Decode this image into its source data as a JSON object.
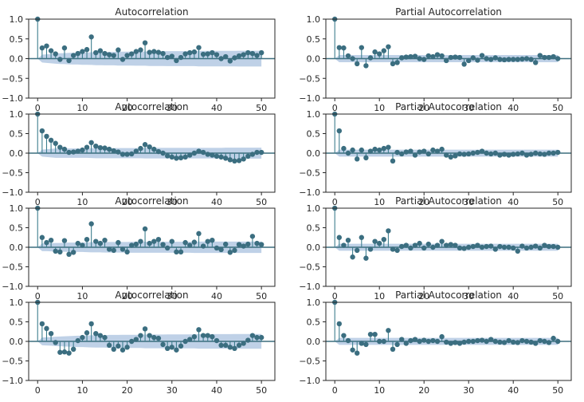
{
  "figure": {
    "rows": 4,
    "cols": 2
  },
  "colors": {
    "stem": "#3d7e8e",
    "marker": "#3b6e80",
    "band": "#b4c9e3",
    "zero_line": "#3d6f7f",
    "axes": "#262626"
  },
  "chart_data": [
    {
      "type": "stem",
      "row": 0,
      "col": 0,
      "title": "Autocorrelation",
      "xlim": [
        -2,
        53
      ],
      "ylim": [
        -1,
        1
      ],
      "xticks": [
        0,
        10,
        20,
        30,
        40,
        50
      ],
      "xtick_labels": [
        "0",
        "10",
        "20",
        "30",
        "40",
        "50"
      ],
      "yticks": [
        -1,
        -0.5,
        0,
        0.5,
        1
      ],
      "ytick_labels": [
        "−1.0",
        "−0.5",
        "0.0",
        "0.5",
        "1.0"
      ],
      "values": [
        1,
        0.27,
        0.32,
        0.2,
        0.12,
        -0.02,
        0.27,
        -0.05,
        0.08,
        0.13,
        0.18,
        0.23,
        0.55,
        0.15,
        0.2,
        0.13,
        0.1,
        0.08,
        0.22,
        -0.02,
        0.08,
        0.12,
        0.18,
        0.22,
        0.4,
        0.16,
        0.18,
        0.16,
        0.13,
        0.03,
        0.06,
        -0.05,
        0.03,
        0.12,
        0.15,
        0.17,
        0.28,
        0.11,
        0.12,
        0.15,
        0.1,
        0.0,
        0.05,
        -0.06,
        0.02,
        0.07,
        0.1,
        0.15,
        0.13,
        0.08,
        0.15
      ],
      "confint": [
        0.0,
        0.1,
        0.11,
        0.12,
        0.13,
        0.135,
        0.14,
        0.145,
        0.15,
        0.15,
        0.155,
        0.155,
        0.16,
        0.165,
        0.165,
        0.17,
        0.17,
        0.17,
        0.175,
        0.175,
        0.175,
        0.175,
        0.18,
        0.18,
        0.18,
        0.185,
        0.185,
        0.185,
        0.185,
        0.19,
        0.19,
        0.19,
        0.19,
        0.19,
        0.19,
        0.19,
        0.195,
        0.195,
        0.195,
        0.195,
        0.195,
        0.195,
        0.195,
        0.195,
        0.195,
        0.2,
        0.2,
        0.2,
        0.2,
        0.2,
        0.2
      ]
    },
    {
      "type": "stem",
      "row": 0,
      "col": 1,
      "title": "Partial Autocorrelation",
      "xlim": [
        -2,
        53
      ],
      "ylim": [
        -1,
        1
      ],
      "xticks": [
        0,
        10,
        20,
        30,
        40,
        50
      ],
      "xtick_labels": [
        "0",
        "10",
        "20",
        "30",
        "40",
        "50"
      ],
      "yticks": [
        -1,
        -0.5,
        0,
        0.5,
        1
      ],
      "ytick_labels": [
        "−1.0",
        "−0.5",
        "0.0",
        "0.5",
        "1.0"
      ],
      "values": [
        1,
        0.28,
        0.27,
        0.07,
        0.0,
        -0.13,
        0.28,
        -0.18,
        0.02,
        0.17,
        0.12,
        0.2,
        0.3,
        -0.13,
        -0.1,
        0.02,
        0.04,
        0.05,
        0.06,
        0.0,
        -0.02,
        0.07,
        0.05,
        0.1,
        0.07,
        -0.05,
        0.03,
        0.04,
        0.03,
        -0.14,
        -0.05,
        0.02,
        -0.04,
        0.08,
        0.0,
        -0.02,
        0.02,
        -0.02,
        -0.03,
        -0.02,
        -0.02,
        -0.02,
        -0.01,
        0.0,
        -0.02,
        -0.1,
        0.08,
        0.03,
        0.03,
        0.05,
        0.0
      ],
      "confint": [
        0.0,
        0.09,
        0.09,
        0.09,
        0.09,
        0.09,
        0.09,
        0.09,
        0.09,
        0.09,
        0.09,
        0.09,
        0.09,
        0.09,
        0.09,
        0.09,
        0.09,
        0.09,
        0.09,
        0.09,
        0.09,
        0.09,
        0.09,
        0.09,
        0.09,
        0.09,
        0.09,
        0.09,
        0.09,
        0.09,
        0.09,
        0.09,
        0.09,
        0.09,
        0.09,
        0.09,
        0.09,
        0.09,
        0.09,
        0.09,
        0.09,
        0.09,
        0.09,
        0.09,
        0.09,
        0.09,
        0.09,
        0.09,
        0.09,
        0.09,
        0.09
      ]
    },
    {
      "type": "stem",
      "row": 1,
      "col": 0,
      "title": "Autocorrelation",
      "xlim": [
        -2,
        53
      ],
      "ylim": [
        -1,
        1
      ],
      "xticks": [
        0,
        10,
        20,
        30,
        40,
        50
      ],
      "xtick_labels": [
        "0",
        "10",
        "20",
        "30",
        "40",
        "50"
      ],
      "yticks": [
        -1,
        -0.5,
        0,
        0.5,
        1
      ],
      "ytick_labels": [
        "−1.0",
        "−0.5",
        "0.0",
        "0.5",
        "1.0"
      ],
      "values": [
        1,
        0.57,
        0.43,
        0.33,
        0.25,
        0.15,
        0.1,
        0.02,
        0.03,
        0.05,
        0.08,
        0.15,
        0.27,
        0.18,
        0.14,
        0.13,
        0.1,
        0.06,
        0.03,
        -0.03,
        -0.03,
        -0.02,
        0.05,
        0.12,
        0.22,
        0.16,
        0.1,
        0.04,
        0.0,
        -0.07,
        -0.1,
        -0.13,
        -0.12,
        -0.1,
        -0.05,
        0.0,
        0.05,
        0.02,
        -0.03,
        -0.05,
        -0.08,
        -0.1,
        -0.13,
        -0.17,
        -0.2,
        -0.19,
        -0.15,
        -0.08,
        -0.03,
        0.02,
        0.02
      ],
      "confint": [
        0.0,
        0.09,
        0.1,
        0.11,
        0.12,
        0.12,
        0.12,
        0.12,
        0.12,
        0.12,
        0.12,
        0.12,
        0.125,
        0.13,
        0.13,
        0.13,
        0.13,
        0.13,
        0.13,
        0.13,
        0.13,
        0.13,
        0.13,
        0.13,
        0.135,
        0.135,
        0.135,
        0.135,
        0.135,
        0.135,
        0.135,
        0.135,
        0.135,
        0.135,
        0.135,
        0.135,
        0.135,
        0.135,
        0.135,
        0.135,
        0.135,
        0.135,
        0.14,
        0.14,
        0.14,
        0.14,
        0.14,
        0.14,
        0.14,
        0.14,
        0.14
      ]
    },
    {
      "type": "stem",
      "row": 1,
      "col": 1,
      "title": "Partial Autocorrelation",
      "xlim": [
        -2,
        53
      ],
      "ylim": [
        -1,
        1
      ],
      "xticks": [
        0,
        10,
        20,
        30,
        40,
        50
      ],
      "xtick_labels": [
        "0",
        "10",
        "20",
        "30",
        "40",
        "50"
      ],
      "yticks": [
        -1,
        -0.5,
        0,
        0.5,
        1
      ],
      "ytick_labels": [
        "−1.0",
        "−0.5",
        "0.0",
        "0.5",
        "1.0"
      ],
      "values": [
        1,
        0.57,
        0.12,
        0.0,
        0.08,
        -0.15,
        0.08,
        -0.12,
        0.05,
        0.1,
        0.08,
        0.12,
        0.15,
        -0.2,
        0.02,
        -0.02,
        0.03,
        0.05,
        -0.05,
        0.03,
        0.05,
        -0.02,
        0.08,
        0.05,
        0.1,
        -0.05,
        -0.1,
        -0.07,
        -0.02,
        -0.03,
        -0.02,
        0.0,
        0.02,
        0.05,
        0.0,
        -0.02,
        0.0,
        -0.05,
        -0.03,
        -0.05,
        -0.03,
        -0.02,
        0.0,
        -0.05,
        -0.03,
        0.0,
        -0.02,
        -0.03,
        0.0,
        0.0,
        0.02
      ],
      "confint": [
        0.0,
        0.09,
        0.09,
        0.09,
        0.09,
        0.09,
        0.09,
        0.09,
        0.09,
        0.09,
        0.09,
        0.09,
        0.09,
        0.09,
        0.09,
        0.09,
        0.09,
        0.09,
        0.09,
        0.09,
        0.09,
        0.09,
        0.09,
        0.09,
        0.09,
        0.09,
        0.09,
        0.09,
        0.09,
        0.09,
        0.09,
        0.09,
        0.09,
        0.09,
        0.09,
        0.09,
        0.09,
        0.09,
        0.09,
        0.09,
        0.09,
        0.09,
        0.09,
        0.09,
        0.09,
        0.09,
        0.09,
        0.09,
        0.09,
        0.09,
        0.09
      ]
    },
    {
      "type": "stem",
      "row": 2,
      "col": 0,
      "title": "Autocorrelation",
      "xlim": [
        -2,
        53
      ],
      "ylim": [
        -1,
        1
      ],
      "xticks": [
        0,
        10,
        20,
        30,
        40,
        50
      ],
      "xtick_labels": [
        "0",
        "10",
        "20",
        "30",
        "40",
        "50"
      ],
      "yticks": [
        -1,
        -0.5,
        0,
        0.5,
        1
      ],
      "ytick_labels": [
        "−1.0",
        "−0.5",
        "0.0",
        "0.5",
        "1.0"
      ],
      "values": [
        1,
        0.25,
        0.12,
        0.18,
        -0.1,
        -0.12,
        0.17,
        -0.18,
        -0.13,
        0.1,
        0.05,
        0.2,
        0.6,
        0.15,
        0.1,
        0.18,
        -0.05,
        -0.08,
        0.12,
        -0.05,
        -0.12,
        0.05,
        0.08,
        0.15,
        0.47,
        0.1,
        0.15,
        0.2,
        0.07,
        -0.02,
        0.15,
        -0.12,
        -0.12,
        0.12,
        0.05,
        0.13,
        0.35,
        0.03,
        0.15,
        0.18,
        -0.02,
        -0.06,
        0.08,
        -0.13,
        -0.08,
        0.07,
        0.03,
        0.08,
        0.28,
        0.1,
        0.07
      ],
      "confint": [
        0.0,
        0.1,
        0.1,
        0.105,
        0.11,
        0.11,
        0.115,
        0.12,
        0.12,
        0.12,
        0.12,
        0.125,
        0.13,
        0.13,
        0.13,
        0.135,
        0.135,
        0.135,
        0.135,
        0.135,
        0.135,
        0.14,
        0.14,
        0.14,
        0.14,
        0.14,
        0.14,
        0.14,
        0.14,
        0.14,
        0.14,
        0.14,
        0.14,
        0.14,
        0.14,
        0.145,
        0.145,
        0.145,
        0.145,
        0.145,
        0.145,
        0.145,
        0.145,
        0.145,
        0.145,
        0.145,
        0.145,
        0.145,
        0.145,
        0.145,
        0.145
      ]
    },
    {
      "type": "stem",
      "row": 2,
      "col": 1,
      "title": "Partial Autocorrelation",
      "xlim": [
        -2,
        53
      ],
      "ylim": [
        -1,
        1
      ],
      "xticks": [
        0,
        10,
        20,
        30,
        40,
        50
      ],
      "xtick_labels": [
        "0",
        "10",
        "20",
        "30",
        "40",
        "50"
      ],
      "yticks": [
        -1,
        -0.5,
        0,
        0.5,
        1
      ],
      "ytick_labels": [
        "−1.0",
        "−0.5",
        "0.0",
        "0.5",
        "1.0"
      ],
      "values": [
        1,
        0.25,
        0.05,
        0.18,
        -0.25,
        -0.08,
        0.25,
        -0.28,
        -0.05,
        0.15,
        0.1,
        0.2,
        0.42,
        -0.05,
        -0.08,
        0.02,
        0.05,
        -0.02,
        0.05,
        0.1,
        -0.02,
        0.08,
        0.0,
        0.05,
        0.15,
        0.05,
        0.07,
        0.05,
        -0.02,
        -0.03,
        0.0,
        0.02,
        0.05,
        0.0,
        0.02,
        0.03,
        -0.05,
        0.02,
        0.0,
        0.0,
        -0.02,
        -0.1,
        0.03,
        -0.02,
        0.0,
        0.03,
        -0.02,
        0.05,
        0.02,
        0.02,
        0.0
      ],
      "confint": [
        0.0,
        0.09,
        0.09,
        0.09,
        0.09,
        0.09,
        0.09,
        0.09,
        0.09,
        0.09,
        0.09,
        0.09,
        0.09,
        0.09,
        0.09,
        0.09,
        0.09,
        0.09,
        0.09,
        0.09,
        0.09,
        0.09,
        0.09,
        0.09,
        0.09,
        0.09,
        0.09,
        0.09,
        0.09,
        0.09,
        0.09,
        0.09,
        0.09,
        0.09,
        0.09,
        0.09,
        0.09,
        0.09,
        0.09,
        0.09,
        0.09,
        0.09,
        0.09,
        0.09,
        0.09,
        0.09,
        0.09,
        0.09,
        0.09,
        0.09,
        0.09
      ]
    },
    {
      "type": "stem",
      "row": 3,
      "col": 0,
      "title": "Autocorrelation",
      "xlim": [
        -2,
        53
      ],
      "ylim": [
        -1,
        1
      ],
      "xticks": [
        0,
        10,
        20,
        30,
        40,
        50
      ],
      "xtick_labels": [
        "0",
        "10",
        "20",
        "30",
        "40",
        "50"
      ],
      "yticks": [
        -1,
        -0.5,
        0,
        0.5,
        1
      ],
      "ytick_labels": [
        "−1.0",
        "−0.5",
        "0.0",
        "0.5",
        "1.0"
      ],
      "values": [
        1,
        0.45,
        0.33,
        0.2,
        -0.03,
        -0.28,
        -0.27,
        -0.3,
        -0.2,
        0.02,
        0.1,
        0.22,
        0.45,
        0.2,
        0.15,
        0.1,
        -0.1,
        -0.2,
        -0.12,
        -0.22,
        -0.15,
        0.0,
        0.05,
        0.15,
        0.32,
        0.15,
        0.1,
        0.08,
        -0.08,
        -0.18,
        -0.15,
        -0.22,
        -0.12,
        0.0,
        0.05,
        0.12,
        0.3,
        0.15,
        0.15,
        0.12,
        0.02,
        -0.1,
        -0.1,
        -0.15,
        -0.18,
        -0.1,
        -0.05,
        0.03,
        0.15,
        0.1,
        0.1
      ],
      "confint": [
        0.0,
        0.1,
        0.105,
        0.11,
        0.12,
        0.125,
        0.13,
        0.135,
        0.14,
        0.145,
        0.145,
        0.15,
        0.155,
        0.16,
        0.16,
        0.16,
        0.165,
        0.165,
        0.165,
        0.17,
        0.17,
        0.17,
        0.17,
        0.17,
        0.175,
        0.175,
        0.175,
        0.175,
        0.175,
        0.18,
        0.18,
        0.18,
        0.18,
        0.18,
        0.18,
        0.18,
        0.185,
        0.185,
        0.185,
        0.185,
        0.185,
        0.185,
        0.185,
        0.185,
        0.19,
        0.19,
        0.19,
        0.19,
        0.19,
        0.19,
        0.19
      ]
    },
    {
      "type": "stem",
      "row": 3,
      "col": 1,
      "title": "Partial Autocorrelation",
      "xlim": [
        -2,
        53
      ],
      "ylim": [
        -1,
        1
      ],
      "xticks": [
        0,
        10,
        20,
        30,
        40,
        50
      ],
      "xtick_labels": [
        "0",
        "10",
        "20",
        "30",
        "40",
        "50"
      ],
      "yticks": [
        -1,
        -0.5,
        0,
        0.5,
        1
      ],
      "ytick_labels": [
        "−1.0",
        "−0.5",
        "0.0",
        "0.5",
        "1.0"
      ],
      "values": [
        1,
        0.45,
        0.15,
        0.02,
        -0.22,
        -0.3,
        -0.05,
        -0.08,
        0.18,
        0.18,
        0.0,
        0.0,
        0.28,
        -0.2,
        -0.08,
        0.05,
        -0.05,
        0.02,
        0.05,
        0.0,
        0.03,
        0.0,
        0.02,
        0.0,
        0.12,
        -0.02,
        -0.05,
        -0.03,
        -0.05,
        -0.02,
        0.0,
        0.0,
        0.02,
        0.03,
        0.0,
        0.05,
        0.0,
        -0.02,
        -0.03,
        0.02,
        -0.02,
        -0.03,
        0.02,
        0.0,
        -0.02,
        -0.05,
        0.02,
        0.0,
        -0.03,
        0.08,
        0.0
      ],
      "confint": [
        0.0,
        0.09,
        0.09,
        0.09,
        0.09,
        0.09,
        0.09,
        0.09,
        0.09,
        0.09,
        0.09,
        0.09,
        0.09,
        0.09,
        0.09,
        0.09,
        0.09,
        0.09,
        0.09,
        0.09,
        0.09,
        0.09,
        0.09,
        0.09,
        0.09,
        0.09,
        0.09,
        0.09,
        0.09,
        0.09,
        0.09,
        0.09,
        0.09,
        0.09,
        0.09,
        0.09,
        0.09,
        0.09,
        0.09,
        0.09,
        0.09,
        0.09,
        0.09,
        0.09,
        0.09,
        0.09,
        0.09,
        0.09,
        0.09,
        0.09,
        0.09
      ]
    }
  ]
}
